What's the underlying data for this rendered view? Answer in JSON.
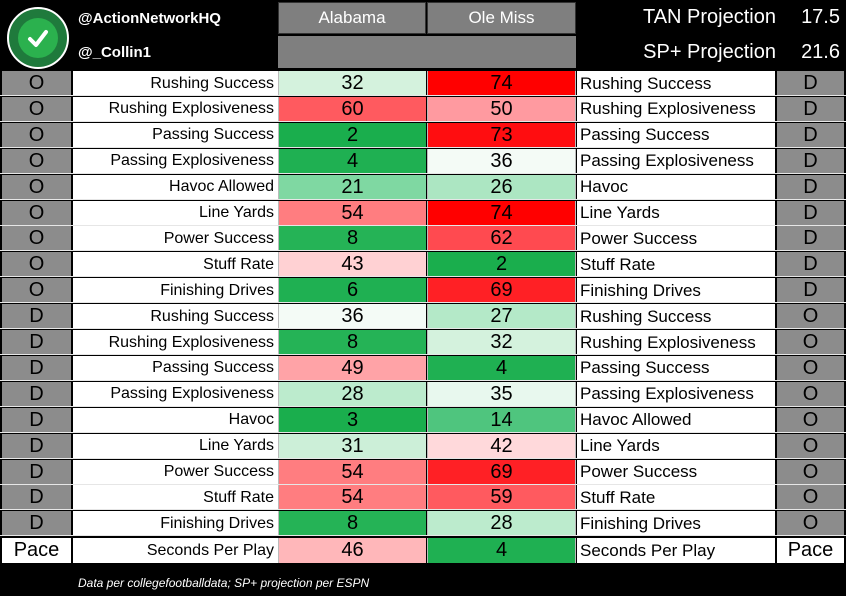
{
  "header": {
    "handle_primary": "@ActionNetworkHQ",
    "handle_secondary": "@_Collin1",
    "team_a": "Alabama",
    "team_b": "Ole Miss",
    "projections": [
      {
        "label": "TAN Projection",
        "value": "17.5"
      },
      {
        "label": "SP+ Projection",
        "value": "21.6"
      }
    ],
    "logo_icon": "checkmark-icon"
  },
  "sections": [
    {
      "left_side": "O",
      "right_side": "D",
      "rows": [
        {
          "left_label": "Rushing Success",
          "a": "32",
          "b": "74",
          "right_label": "Rushing Success",
          "a_color": "#d4f2dd",
          "b_color": "#ff0000"
        },
        {
          "left_label": "Rushing Explosiveness",
          "a": "60",
          "b": "50",
          "right_label": "Rushing Explosiveness",
          "a_color": "#ff5a5f",
          "b_color": "#ff9aa0"
        },
        {
          "left_label": "Passing Success",
          "a": "2",
          "b": "73",
          "right_label": "Passing Success",
          "a_color": "#1aae4d",
          "b_color": "#ff0d10"
        },
        {
          "left_label": "Passing Explosiveness",
          "a": "4",
          "b": "36",
          "right_label": "Passing Explosiveness",
          "a_color": "#1fb052",
          "b_color": "#f4fbf6"
        },
        {
          "left_label": "Havoc Allowed",
          "a": "21",
          "b": "26",
          "right_label": "Havoc",
          "a_color": "#7fd8a2",
          "b_color": "#ace6c2"
        },
        {
          "left_label": "Line Yards",
          "a": "54",
          "b": "74",
          "right_label": "Line Yards",
          "a_color": "#ff7d80",
          "b_color": "#ff0000"
        },
        {
          "left_label": "Power Success",
          "a": "8",
          "b": "62",
          "right_label": "Power Success",
          "a_color": "#25b356",
          "b_color": "#ff4a50"
        },
        {
          "left_label": "Stuff Rate",
          "a": "43",
          "b": "2",
          "right_label": "Stuff Rate",
          "a_color": "#ffd1d3",
          "b_color": "#1aae4d"
        },
        {
          "left_label": "Finishing Drives",
          "a": "6",
          "b": "69",
          "right_label": "Finishing Drives",
          "a_color": "#1fb052",
          "b_color": "#ff2025"
        }
      ]
    },
    {
      "left_side": "D",
      "right_side": "O",
      "rows": [
        {
          "left_label": "Rushing Success",
          "a": "36",
          "b": "27",
          "right_label": "Rushing Success",
          "a_color": "#f4fbf6",
          "b_color": "#b4e9c8"
        },
        {
          "left_label": "Rushing Explosiveness",
          "a": "8",
          "b": "32",
          "right_label": "Rushing Explosiveness",
          "a_color": "#25b356",
          "b_color": "#d4f2dd"
        },
        {
          "left_label": "Passing Success",
          "a": "49",
          "b": "4",
          "right_label": "Passing Success",
          "a_color": "#ffa3a7",
          "b_color": "#1fb052"
        },
        {
          "left_label": "Passing Explosiveness",
          "a": "28",
          "b": "35",
          "right_label": "Passing Explosiveness",
          "a_color": "#bcebcd",
          "b_color": "#e8f8ee"
        },
        {
          "left_label": "Havoc",
          "a": "3",
          "b": "14",
          "right_label": "Havoc Allowed",
          "a_color": "#1aae4d",
          "b_color": "#4fc57e"
        },
        {
          "left_label": "Line Yards",
          "a": "31",
          "b": "42",
          "right_label": "Line Yards",
          "a_color": "#ccefd8",
          "b_color": "#ffd9db"
        },
        {
          "left_label": "Power Success",
          "a": "54",
          "b": "69",
          "right_label": "Power Success",
          "a_color": "#ff7d80",
          "b_color": "#ff2025"
        },
        {
          "left_label": "Stuff Rate",
          "a": "54",
          "b": "59",
          "right_label": "Stuff Rate",
          "a_color": "#ff7d80",
          "b_color": "#ff5a5f"
        },
        {
          "left_label": "Finishing Drives",
          "a": "8",
          "b": "28",
          "right_label": "Finishing Drives",
          "a_color": "#25b356",
          "b_color": "#bcebcd"
        }
      ]
    }
  ],
  "pace": {
    "left_side": "Pace",
    "right_side": "Pace",
    "left_label": "Seconds Per Play",
    "a": "46",
    "b": "4",
    "right_label": "Seconds Per Play",
    "a_color": "#ffb7ba",
    "b_color": "#1fb052"
  },
  "footnote": "Data per collegefootballdata; SP+ projection per ESPN"
}
